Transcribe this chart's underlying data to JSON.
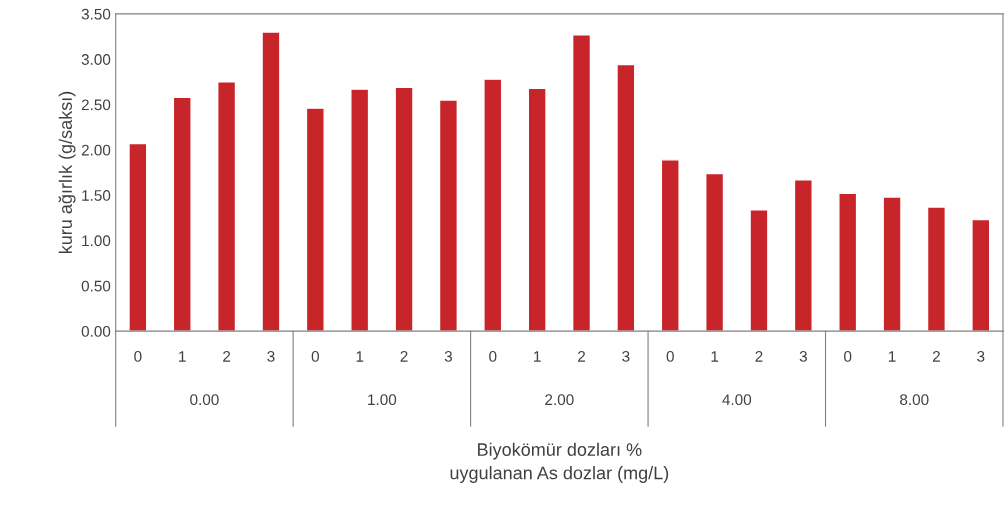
{
  "chart_data": {
    "type": "bar",
    "ylabel": "kuru ağırlık (g/saksı)",
    "xlabel": "Biyokömür dozları %\nuygulanan As dozlar (mg/L)",
    "categories": [
      "0",
      "1",
      "2",
      "3",
      "0",
      "1",
      "2",
      "3",
      "0",
      "1",
      "2",
      "3",
      "0",
      "1",
      "2",
      "3",
      "0",
      "1",
      "2",
      "3"
    ],
    "values": [
      2.07,
      2.58,
      2.75,
      3.3,
      2.46,
      2.67,
      2.69,
      2.55,
      2.78,
      2.68,
      3.27,
      2.94,
      1.89,
      1.74,
      1.34,
      1.67,
      1.52,
      1.48,
      1.37,
      1.23
    ],
    "color": "#c8252a",
    "annotations": [
      "0.00",
      "1.00",
      "2.00",
      "4.00",
      "8.00"
    ],
    "ylim": [
      0,
      3.5
    ],
    "yticks": [
      {
        "value": 0,
        "label": "0.00"
      },
      {
        "value": 0.5,
        "label": "0.50"
      },
      {
        "value": 1,
        "label": "1.00"
      },
      {
        "value": 1.5,
        "label": "1.50"
      },
      {
        "value": 2,
        "label": "2.00"
      },
      {
        "value": 2.5,
        "label": "2.50"
      },
      {
        "value": 3,
        "label": "3.00"
      },
      {
        "value": 3.5,
        "label": "3.50"
      }
    ],
    "grid": false
  }
}
